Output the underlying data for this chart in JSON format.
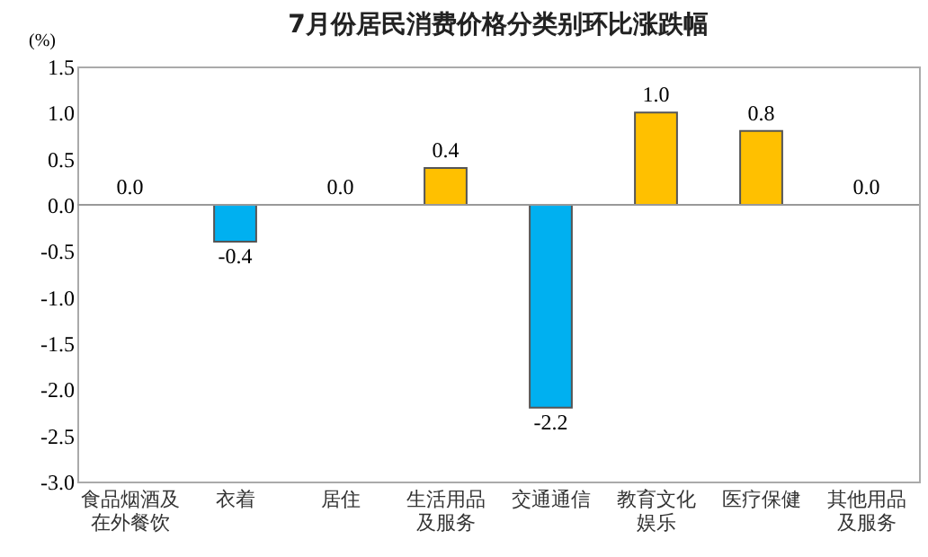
{
  "chart_data": {
    "type": "bar",
    "title": "7月份居民消费价格分类别环比涨跌幅",
    "ylabel": "(%)",
    "categories": [
      "食品烟酒及在外餐饮",
      "衣着",
      "居住",
      "生活用品及服务",
      "交通通信",
      "教育文化娱乐",
      "医疗保健",
      "其他用品及服务"
    ],
    "values": [
      0.0,
      -0.4,
      0.0,
      0.4,
      -2.2,
      1.0,
      0.8,
      0.0
    ],
    "colors": [
      "#ffc000",
      "#00b0f0",
      "#ffc000",
      "#ffc000",
      "#00b0f0",
      "#ffc000",
      "#ffc000",
      "#ffc000"
    ],
    "ylim": [
      -3.0,
      1.5
    ],
    "yticks": [
      {
        "value": -3,
        "label": "-3.0"
      },
      {
        "value": -2.5,
        "label": "-2.5"
      },
      {
        "value": -2,
        "label": "-2.0"
      },
      {
        "value": -1.5,
        "label": "-1.5"
      },
      {
        "value": -1,
        "label": "-1.0"
      },
      {
        "value": -0.5,
        "label": "-0.5"
      },
      {
        "value": 0,
        "label": "0.0"
      },
      {
        "value": 0.5,
        "label": "0.5"
      },
      {
        "value": 1,
        "label": "1.0"
      },
      {
        "value": 1.5,
        "label": "1.5"
      }
    ],
    "value_labels": [
      "0.0",
      "-0.4",
      "0.0",
      "0.4",
      "-2.2",
      "1.0",
      "0.8",
      "0.0"
    ]
  }
}
